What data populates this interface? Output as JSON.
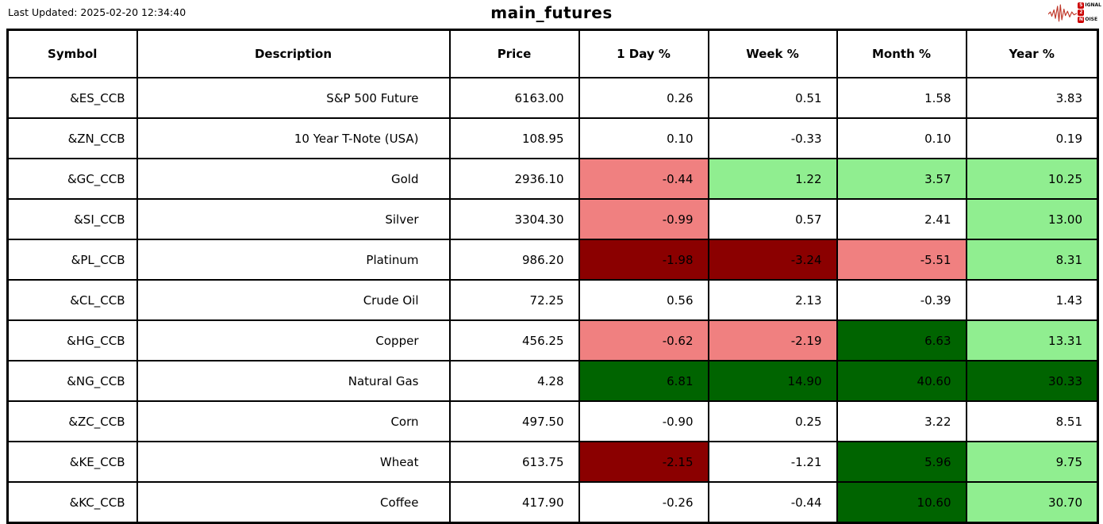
{
  "header": {
    "last_updated": "Last Updated: 2025-02-20 12:34:40",
    "title": "main_futures"
  },
  "logo": {
    "lines": [
      {
        "badge": "S",
        "rest": "IGNAL"
      },
      {
        "badge": "2",
        "rest": ""
      },
      {
        "badge": "N",
        "rest": "OISE"
      }
    ],
    "waveform_color": "#c0392b"
  },
  "colors": {
    "light_red": "#F08080",
    "dark_red": "#8B0000",
    "light_green": "#90EE90",
    "dark_green": "#006400"
  },
  "chart_data": {
    "type": "table",
    "title": "main_futures",
    "columns": [
      "Symbol",
      "Description",
      "Price",
      "1 Day %",
      "Week %",
      "Month %",
      "Year %"
    ],
    "rows": [
      {
        "symbol": "&ES_CCB",
        "description": "S&P 500 Future",
        "price": "6163.00",
        "day": "0.26",
        "week": "0.51",
        "month": "1.58",
        "year": "3.83"
      },
      {
        "symbol": "&ZN_CCB",
        "description": "10 Year T-Note (USA)",
        "price": "108.95",
        "day": "0.10",
        "week": "-0.33",
        "month": "0.10",
        "year": "0.19"
      },
      {
        "symbol": "&GC_CCB",
        "description": "Gold",
        "price": "2936.10",
        "day": "-0.44",
        "day_bg": "light_red",
        "week": "1.22",
        "week_bg": "light_green",
        "month": "3.57",
        "month_bg": "light_green",
        "year": "10.25",
        "year_bg": "light_green"
      },
      {
        "symbol": "&SI_CCB",
        "description": "Silver",
        "price": "3304.30",
        "day": "-0.99",
        "day_bg": "light_red",
        "week": "0.57",
        "month": "2.41",
        "year": "13.00",
        "year_bg": "light_green"
      },
      {
        "symbol": "&PL_CCB",
        "description": "Platinum",
        "price": "986.20",
        "day": "-1.98",
        "day_bg": "dark_red",
        "week": "-3.24",
        "week_bg": "dark_red",
        "month": "-5.51",
        "month_bg": "light_red",
        "year": "8.31",
        "year_bg": "light_green"
      },
      {
        "symbol": "&CL_CCB",
        "description": "Crude Oil",
        "price": "72.25",
        "day": "0.56",
        "week": "2.13",
        "month": "-0.39",
        "year": "1.43"
      },
      {
        "symbol": "&HG_CCB",
        "description": "Copper",
        "price": "456.25",
        "day": "-0.62",
        "day_bg": "light_red",
        "week": "-2.19",
        "week_bg": "light_red",
        "month": "6.63",
        "month_bg": "dark_green",
        "year": "13.31",
        "year_bg": "light_green"
      },
      {
        "symbol": "&NG_CCB",
        "description": "Natural Gas",
        "price": "4.28",
        "day": "6.81",
        "day_bg": "dark_green",
        "week": "14.90",
        "week_bg": "dark_green",
        "month": "40.60",
        "month_bg": "dark_green",
        "year": "30.33",
        "year_bg": "dark_green"
      },
      {
        "symbol": "&ZC_CCB",
        "description": "Corn",
        "price": "497.50",
        "day": "-0.90",
        "week": "0.25",
        "month": "3.22",
        "year": "8.51"
      },
      {
        "symbol": "&KE_CCB",
        "description": "Wheat",
        "price": "613.75",
        "day": "-2.15",
        "day_bg": "dark_red",
        "week": "-1.21",
        "month": "5.96",
        "month_bg": "dark_green",
        "year": "9.75",
        "year_bg": "light_green"
      },
      {
        "symbol": "&KC_CCB",
        "description": "Coffee",
        "price": "417.90",
        "day": "-0.26",
        "week": "-0.44",
        "month": "10.60",
        "month_bg": "dark_green",
        "year": "30.70",
        "year_bg": "light_green"
      }
    ]
  }
}
